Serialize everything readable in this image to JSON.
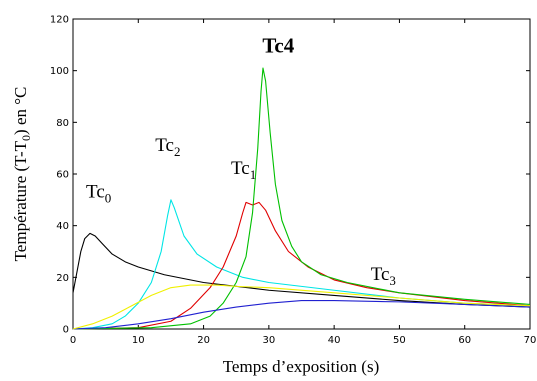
{
  "chart_data": {
    "type": "line",
    "xlabel": "Temps d’exposition (s)",
    "ylabel": {
      "main": "Température (T-T",
      "sub": "0",
      "tail": ") en °C"
    },
    "xlim": [
      0,
      70
    ],
    "ylim": [
      0,
      120
    ],
    "x_ticks": [
      0,
      10,
      20,
      30,
      40,
      50,
      60,
      70
    ],
    "y_ticks": [
      0,
      20,
      40,
      60,
      80,
      100,
      120
    ],
    "grid": false,
    "series": [
      {
        "name": "Tc0",
        "color": "#000000",
        "points": [
          [
            0,
            14
          ],
          [
            0.6,
            22
          ],
          [
            1.2,
            30
          ],
          [
            1.8,
            35
          ],
          [
            2.6,
            37
          ],
          [
            3.4,
            36
          ],
          [
            4.5,
            33
          ],
          [
            6,
            29
          ],
          [
            8,
            26
          ],
          [
            10,
            24
          ],
          [
            14,
            21
          ],
          [
            20,
            18
          ],
          [
            30,
            15
          ],
          [
            40,
            13
          ],
          [
            50,
            11
          ],
          [
            60,
            9.5
          ],
          [
            70,
            8.5
          ]
        ]
      },
      {
        "name": "Tc2",
        "color": "#00e5e5",
        "points": [
          [
            0,
            0
          ],
          [
            3,
            0.5
          ],
          [
            6,
            2
          ],
          [
            8,
            5
          ],
          [
            10,
            10
          ],
          [
            12,
            18
          ],
          [
            13.5,
            30
          ],
          [
            14.5,
            44
          ],
          [
            15,
            50
          ],
          [
            15.5,
            47
          ],
          [
            17,
            36
          ],
          [
            19,
            29
          ],
          [
            22,
            24
          ],
          [
            26,
            20
          ],
          [
            30,
            18
          ],
          [
            40,
            15
          ],
          [
            50,
            12
          ],
          [
            60,
            10
          ],
          [
            70,
            9
          ]
        ]
      },
      {
        "name": "Tc1",
        "color": "#e00000",
        "points": [
          [
            0,
            0
          ],
          [
            10,
            0.5
          ],
          [
            15,
            3
          ],
          [
            18,
            8
          ],
          [
            21,
            16
          ],
          [
            23,
            24
          ],
          [
            25,
            36
          ],
          [
            26,
            45
          ],
          [
            26.5,
            49
          ],
          [
            27.5,
            48
          ],
          [
            28.5,
            49
          ],
          [
            29.5,
            46
          ],
          [
            31,
            38
          ],
          [
            33,
            30
          ],
          [
            36,
            24
          ],
          [
            40,
            19
          ],
          [
            45,
            16
          ],
          [
            50,
            14
          ],
          [
            60,
            11
          ],
          [
            70,
            9
          ]
        ]
      },
      {
        "name": "Tc4",
        "color": "#00c000",
        "points": [
          [
            0,
            0
          ],
          [
            12,
            0.5
          ],
          [
            18,
            2
          ],
          [
            21,
            5
          ],
          [
            23,
            10
          ],
          [
            25,
            18
          ],
          [
            26.5,
            28
          ],
          [
            27.5,
            45
          ],
          [
            28.3,
            70
          ],
          [
            28.8,
            92
          ],
          [
            29.1,
            101
          ],
          [
            29.5,
            96
          ],
          [
            30.2,
            76
          ],
          [
            31,
            56
          ],
          [
            32,
            42
          ],
          [
            33.5,
            32
          ],
          [
            35,
            26
          ],
          [
            38,
            21
          ],
          [
            42,
            18
          ],
          [
            50,
            14
          ],
          [
            60,
            11.5
          ],
          [
            70,
            9.5
          ]
        ]
      },
      {
        "name": "Tc3",
        "color": "#2020d0",
        "points": [
          [
            0,
            0
          ],
          [
            5,
            0.5
          ],
          [
            10,
            2
          ],
          [
            15,
            4
          ],
          [
            20,
            6.5
          ],
          [
            25,
            8.5
          ],
          [
            30,
            10
          ],
          [
            35,
            11
          ],
          [
            40,
            11
          ],
          [
            50,
            10.5
          ],
          [
            60,
            9.5
          ],
          [
            70,
            8.5
          ]
        ]
      },
      {
        "name": "",
        "color": "#f0f000",
        "points": [
          [
            0,
            0
          ],
          [
            3,
            2
          ],
          [
            6,
            5
          ],
          [
            9,
            9
          ],
          [
            12,
            13
          ],
          [
            15,
            16
          ],
          [
            18,
            17
          ],
          [
            22,
            17
          ],
          [
            25,
            16.5
          ],
          [
            30,
            16
          ],
          [
            40,
            14
          ],
          [
            50,
            12
          ],
          [
            60,
            10
          ],
          [
            70,
            9
          ]
        ]
      }
    ],
    "annotations": [
      {
        "base": "Tc",
        "sub": "0",
        "x": 2.0,
        "y": 51,
        "bold": false
      },
      {
        "base": "Tc",
        "sub": "2",
        "x": 12.6,
        "y": 69,
        "bold": false
      },
      {
        "base": "Tc",
        "sub": "1",
        "x": 24.2,
        "y": 60,
        "bold": false
      },
      {
        "base": "Tc4",
        "sub": "",
        "x": 29.0,
        "y": 107,
        "bold": true
      },
      {
        "base": "Tc",
        "sub": "3",
        "x": 45.6,
        "y": 19,
        "bold": false
      }
    ]
  }
}
